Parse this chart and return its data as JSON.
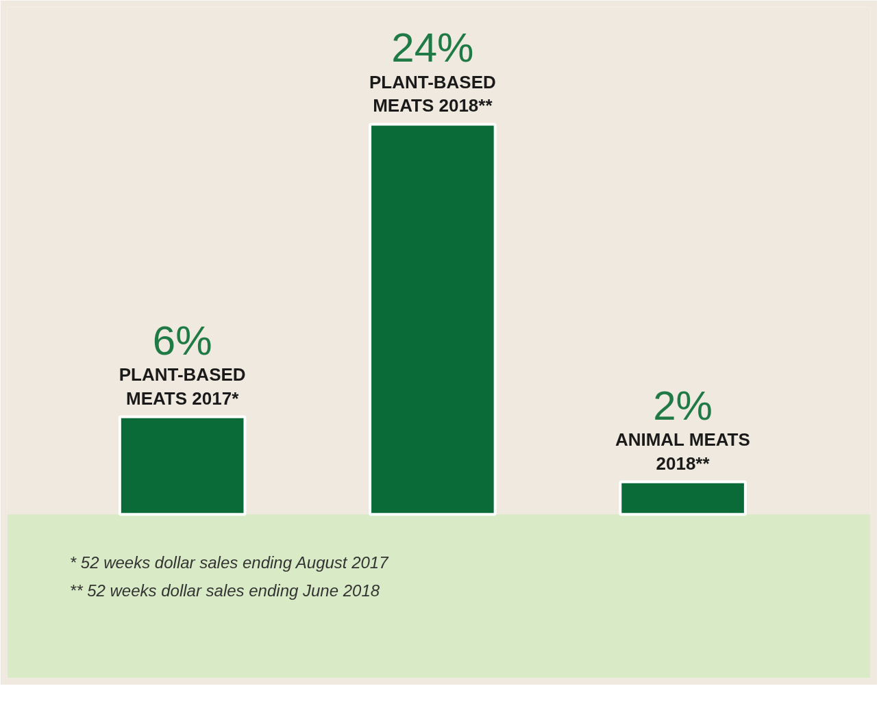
{
  "chart_data": {
    "type": "bar",
    "categories": [
      "PLANT-BASED MEATS 2017*",
      "PLANT-BASED MEATS 2018**",
      "ANIMAL MEATS 2018**"
    ],
    "values": [
      6,
      24,
      2
    ],
    "value_labels": [
      "6%",
      "24%",
      "2%"
    ],
    "color": "#0b6b38",
    "grid": false,
    "annotations": [
      "* 52 weeks dollar sales ending August 2017",
      "** 52 weeks dollar sales ending June 2018"
    ]
  }
}
